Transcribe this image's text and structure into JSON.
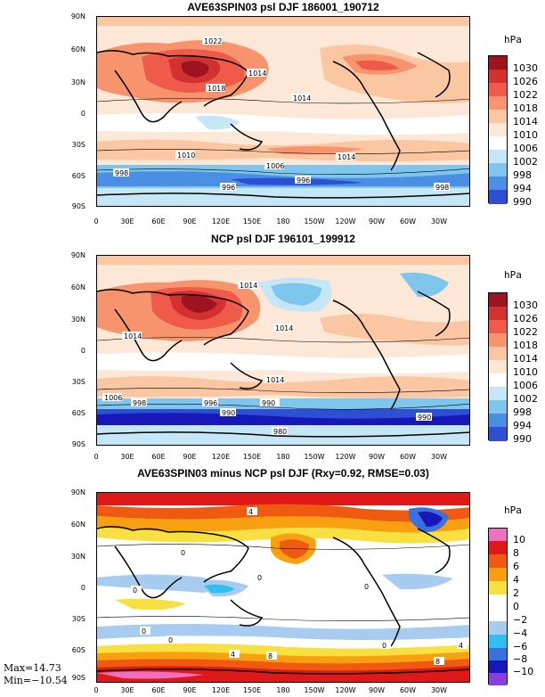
{
  "panels": [
    {
      "title": "AVE63SPIN03 psl DJF 186001_190712",
      "unit": "hPa",
      "legend": [
        {
          "label": "1030",
          "color": "#9d1420"
        },
        {
          "label": "1026",
          "color": "#d33030"
        },
        {
          "label": "1022",
          "color": "#ef5a4a"
        },
        {
          "label": "1018",
          "color": "#f7946d"
        },
        {
          "label": "1014",
          "color": "#fbc7a3"
        },
        {
          "label": "1010",
          "color": "#fde8d7"
        },
        {
          "label": "1006",
          "color": "#ffffff"
        },
        {
          "label": "1002",
          "color": "#c5e6f5"
        },
        {
          "label": "998",
          "color": "#7fc6ee"
        },
        {
          "label": "994",
          "color": "#4a8fe3"
        },
        {
          "label": "990",
          "color": "#2d4fd6"
        }
      ],
      "contour_labels": [
        "1022",
        "1018",
        "1014",
        "1014",
        "1010",
        "1014",
        "1006",
        "998",
        "996",
        "996",
        "998"
      ]
    },
    {
      "title": "NCP psl DJF 196101_199912",
      "unit": "hPa",
      "legend": [
        {
          "label": "1030",
          "color": "#9d1420"
        },
        {
          "label": "1026",
          "color": "#d33030"
        },
        {
          "label": "1022",
          "color": "#ef5a4a"
        },
        {
          "label": "1018",
          "color": "#f7946d"
        },
        {
          "label": "1014",
          "color": "#fbc7a3"
        },
        {
          "label": "1010",
          "color": "#fde8d7"
        },
        {
          "label": "1006",
          "color": "#ffffff"
        },
        {
          "label": "1002",
          "color": "#c5e6f5"
        },
        {
          "label": "998",
          "color": "#7fc6ee"
        },
        {
          "label": "994",
          "color": "#4a8fe3"
        },
        {
          "label": "990",
          "color": "#2d4fd6"
        }
      ],
      "contour_labels": [
        "1014",
        "1014",
        "1014",
        "1014",
        "1006",
        "998",
        "996",
        "990",
        "990",
        "990",
        "980"
      ]
    },
    {
      "title": "AVE63SPIN03 minus NCP psl DJF (Rxy=0.92, RMSE=0.03)",
      "unit": "hPa",
      "legend": [
        {
          "label": "10",
          "color": "#f070c0"
        },
        {
          "label": "8",
          "color": "#e01818"
        },
        {
          "label": "6",
          "color": "#f05a10"
        },
        {
          "label": "4",
          "color": "#f8a010"
        },
        {
          "label": "2",
          "color": "#f8e040"
        },
        {
          "label": "0",
          "color": "#ffffff"
        },
        {
          "label": "−2",
          "color": "#ffffff"
        },
        {
          "label": "−4",
          "color": "#a8ccf0"
        },
        {
          "label": "−6",
          "color": "#30c0f0"
        },
        {
          "label": "−8",
          "color": "#3a70e0"
        },
        {
          "label": "−10",
          "color": "#1818b8"
        }
      ],
      "extra_color": "#8a3ee0",
      "contour_labels": [
        "4",
        "0",
        "0",
        "0",
        "0",
        "0",
        "0",
        "0",
        "4",
        "8",
        "8",
        "4"
      ],
      "stats": {
        "max": "Max=14.73",
        "min": "Min=−10.54"
      }
    }
  ],
  "lat_labels": [
    "90N",
    "60N",
    "30N",
    "0",
    "30S",
    "60S",
    "90S"
  ],
  "lon_labels": [
    "0",
    "30E",
    "60E",
    "90E",
    "120E",
    "150E",
    "180",
    "150W",
    "120W",
    "90W",
    "60W",
    "30W"
  ]
}
